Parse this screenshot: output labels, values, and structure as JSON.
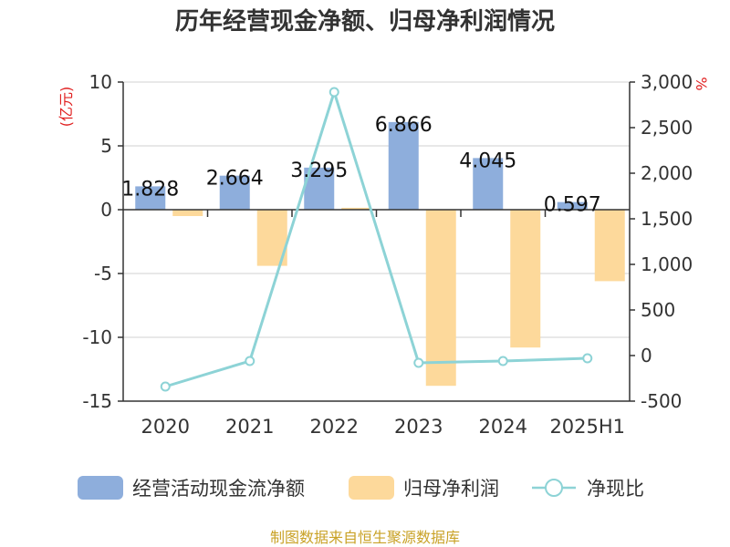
{
  "chart_data": {
    "type": "bar+line",
    "title": "历年经营现金净额、归母净利润情况",
    "categories": [
      "2020",
      "2021",
      "2022",
      "2023",
      "2024",
      "2025H1"
    ],
    "series": [
      {
        "name": "经营活动现金流净额",
        "type": "bar",
        "axis": "left",
        "color": "#8eaedc",
        "values": [
          1.828,
          2.664,
          3.295,
          6.866,
          4.045,
          0.597
        ],
        "labels": [
          "1.828",
          "2.664",
          "3.295",
          "6.866",
          "4.045",
          "0.597"
        ]
      },
      {
        "name": "归母净利润",
        "type": "bar",
        "axis": "left",
        "color": "#fdd99b",
        "values": [
          -0.5,
          -4.4,
          0.15,
          -13.8,
          -10.8,
          -5.6
        ]
      },
      {
        "name": "净现比",
        "type": "line",
        "axis": "right",
        "color": "#8dd3d6",
        "values": [
          -340,
          -60,
          2890,
          -80,
          -60,
          -30
        ]
      }
    ],
    "y_left": {
      "unit": "(亿元)",
      "range": [
        -15,
        10
      ],
      "ticks": [
        10,
        5,
        0,
        -5,
        -10,
        -15
      ],
      "tick_labels": [
        "10",
        "5",
        "0",
        "-5",
        "-10",
        "-15"
      ]
    },
    "y_right": {
      "unit": "%",
      "range": [
        -500,
        3000
      ],
      "ticks": [
        3000,
        2500,
        2000,
        1500,
        1000,
        500,
        0,
        -500
      ],
      "tick_labels": [
        "3,000",
        "2,500",
        "2,000",
        "1,500",
        "1,000",
        "500",
        "0",
        "-500"
      ]
    },
    "grid": true,
    "legend_position": "bottom"
  },
  "footer": "制图数据来自恒生聚源数据库"
}
